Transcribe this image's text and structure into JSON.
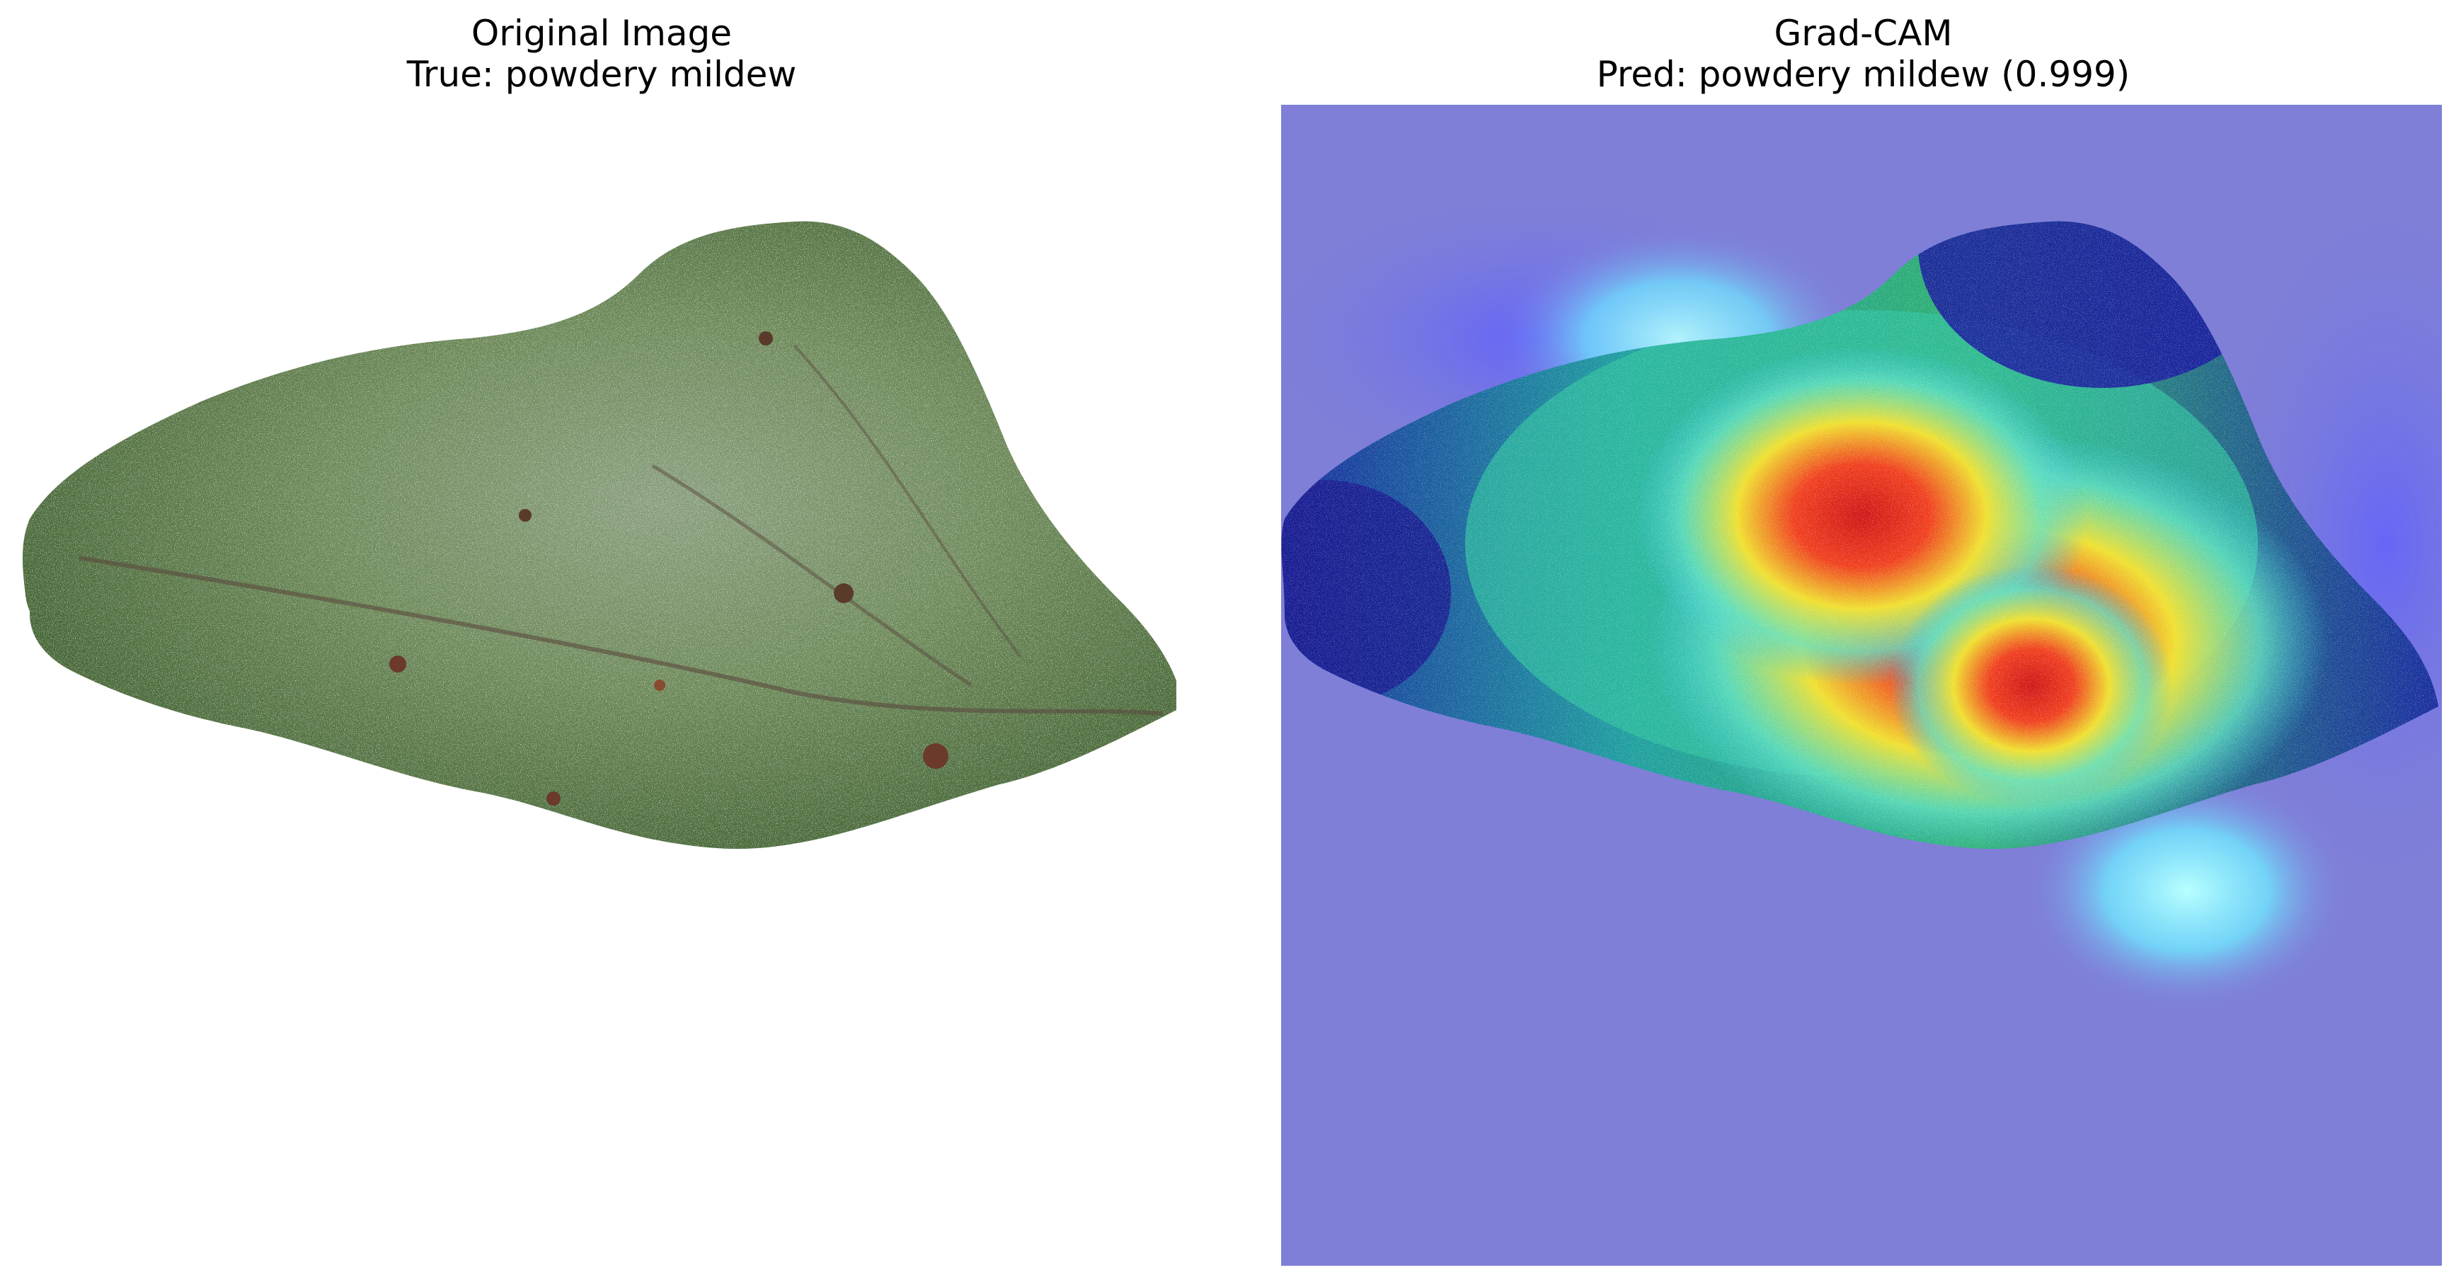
{
  "panels": [
    {
      "title": "Original Image",
      "subtitle": "True: powdery mildew"
    },
    {
      "title": "Grad-CAM",
      "subtitle": "Pred: powdery mildew (0.999)"
    }
  ],
  "colors": {
    "leaf_dark": "#3f5f30",
    "leaf_light": "#7d9a6a",
    "heatmap_background": "#7f7fd8",
    "heatmap_hot": "#e02020",
    "heatmap_warm": "#f0e020",
    "heatmap_cool": "#30d8c8"
  }
}
